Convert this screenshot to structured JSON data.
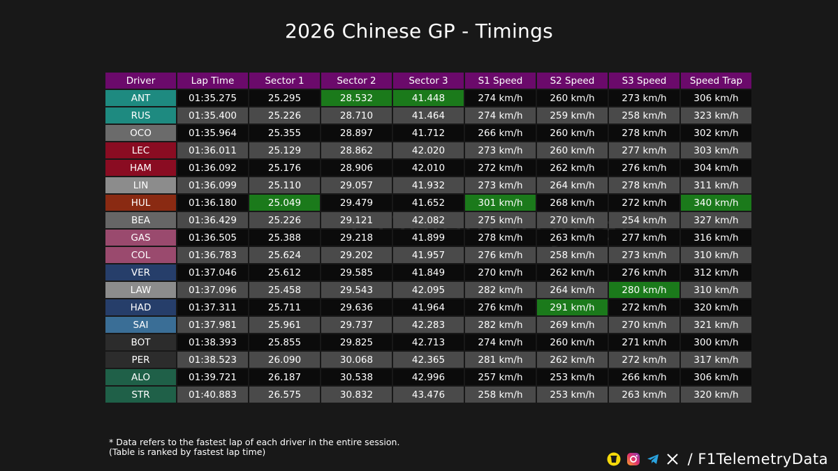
{
  "title": "2026 Chinese GP - Timings",
  "watermark": "F1TelemetryData",
  "table": {
    "columns": [
      "Driver",
      "Lap Time",
      "Sector 1",
      "Sector 2",
      "Sector 3",
      "S1 Speed",
      "S2 Speed",
      "S3 Speed",
      "Speed Trap"
    ],
    "rows": [
      {
        "driver": "ANT",
        "color": "#1e8a80",
        "cells": [
          "01:35.275",
          "25.295",
          "28.532",
          "41.448",
          "274 km/h",
          "260 km/h",
          "273 km/h",
          "306 km/h"
        ],
        "best": [
          2,
          3
        ]
      },
      {
        "driver": "RUS",
        "color": "#1e8a80",
        "cells": [
          "01:35.400",
          "25.226",
          "28.710",
          "41.464",
          "274 km/h",
          "259 km/h",
          "258 km/h",
          "323 km/h"
        ],
        "best": []
      },
      {
        "driver": "OCO",
        "color": "#6b6b6b",
        "cells": [
          "01:35.964",
          "25.355",
          "28.897",
          "41.712",
          "266 km/h",
          "260 km/h",
          "278 km/h",
          "302 km/h"
        ],
        "best": []
      },
      {
        "driver": "LEC",
        "color": "#8a0c22",
        "cells": [
          "01:36.011",
          "25.129",
          "28.862",
          "42.020",
          "273 km/h",
          "260 km/h",
          "277 km/h",
          "303 km/h"
        ],
        "best": []
      },
      {
        "driver": "HAM",
        "color": "#8a0c22",
        "cells": [
          "01:36.092",
          "25.176",
          "28.906",
          "42.010",
          "272 km/h",
          "262 km/h",
          "276 km/h",
          "304 km/h"
        ],
        "best": []
      },
      {
        "driver": "LIN",
        "color": "#8c8c8c",
        "cells": [
          "01:36.099",
          "25.110",
          "29.057",
          "41.932",
          "273 km/h",
          "264 km/h",
          "278 km/h",
          "311 km/h"
        ],
        "best": []
      },
      {
        "driver": "HUL",
        "color": "#8a2a12",
        "cells": [
          "01:36.180",
          "25.049",
          "29.479",
          "41.652",
          "301 km/h",
          "268 km/h",
          "272 km/h",
          "340 km/h"
        ],
        "best": [
          1,
          4,
          7
        ]
      },
      {
        "driver": "BEA",
        "color": "#666666",
        "cells": [
          "01:36.429",
          "25.226",
          "29.121",
          "42.082",
          "275 km/h",
          "270 km/h",
          "254 km/h",
          "327 km/h"
        ],
        "best": []
      },
      {
        "driver": "GAS",
        "color": "#9a4a6e",
        "cells": [
          "01:36.505",
          "25.388",
          "29.218",
          "41.899",
          "278 km/h",
          "263 km/h",
          "277 km/h",
          "316 km/h"
        ],
        "best": []
      },
      {
        "driver": "COL",
        "color": "#9a4a6e",
        "cells": [
          "01:36.783",
          "25.624",
          "29.202",
          "41.957",
          "276 km/h",
          "258 km/h",
          "273 km/h",
          "310 km/h"
        ],
        "best": []
      },
      {
        "driver": "VER",
        "color": "#263e6a",
        "cells": [
          "01:37.046",
          "25.612",
          "29.585",
          "41.849",
          "270 km/h",
          "262 km/h",
          "276 km/h",
          "312 km/h"
        ],
        "best": []
      },
      {
        "driver": "LAW",
        "color": "#8c8c8c",
        "cells": [
          "01:37.096",
          "25.458",
          "29.543",
          "42.095",
          "282 km/h",
          "264 km/h",
          "280 km/h",
          "310 km/h"
        ],
        "best": [
          6
        ]
      },
      {
        "driver": "HAD",
        "color": "#263e6a",
        "cells": [
          "01:37.311",
          "25.711",
          "29.636",
          "41.964",
          "276 km/h",
          "291 km/h",
          "272 km/h",
          "320 km/h"
        ],
        "best": [
          5
        ]
      },
      {
        "driver": "SAI",
        "color": "#3a6e96",
        "cells": [
          "01:37.981",
          "25.961",
          "29.737",
          "42.283",
          "282 km/h",
          "269 km/h",
          "270 km/h",
          "321 km/h"
        ],
        "best": []
      },
      {
        "driver": "BOT",
        "color": "#2c2c2c",
        "cells": [
          "01:38.393",
          "25.855",
          "29.825",
          "42.713",
          "274 km/h",
          "260 km/h",
          "271 km/h",
          "300 km/h"
        ],
        "best": []
      },
      {
        "driver": "PER",
        "color": "#2c2c2c",
        "cells": [
          "01:38.523",
          "26.090",
          "30.068",
          "42.365",
          "281 km/h",
          "262 km/h",
          "272 km/h",
          "317 km/h"
        ],
        "best": []
      },
      {
        "driver": "ALO",
        "color": "#1f6048",
        "cells": [
          "01:39.721",
          "26.187",
          "30.538",
          "42.996",
          "257 km/h",
          "253 km/h",
          "266 km/h",
          "306 km/h"
        ],
        "best": []
      },
      {
        "driver": "STR",
        "color": "#1f6048",
        "cells": [
          "01:40.883",
          "26.575",
          "30.832",
          "43.476",
          "258 km/h",
          "253 km/h",
          "263 km/h",
          "320 km/h"
        ],
        "best": []
      }
    ]
  },
  "footnote": {
    "line1": "* Data refers to the fastest lap of each driver in the entire session.",
    "line2": "(Table is ranked by fastest lap time)"
  },
  "social": {
    "icons": [
      "buymeacoffee-icon",
      "instagram-icon",
      "telegram-icon",
      "x-icon"
    ],
    "handle": "/ F1TelemetryData"
  },
  "colors": {
    "header": "#6b0a6b",
    "best": "#1b7a1b",
    "row_light": "#4a4a4a",
    "row_dark": "#0b0b0b",
    "background": "#181818"
  }
}
